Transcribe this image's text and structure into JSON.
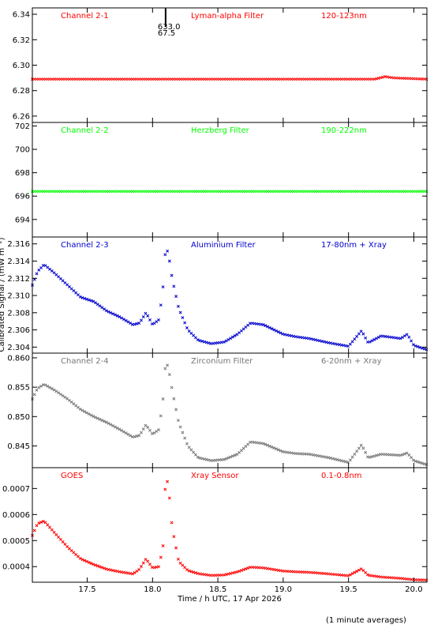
{
  "figure": {
    "xlabel": "Time / h UTC, 17 Apr 2026",
    "ylabel": "Calibrated Signal / (mW m⁻²)",
    "footnote": "(1 minute averages)",
    "marker": "x (small crosses)",
    "annotation": {
      "text1": "633.0",
      "text2": "67.5",
      "x": 18.1
    }
  },
  "chart_data": [
    {
      "type": "scatter",
      "channel": "Channel 2-1",
      "filter": "Lyman-alpha Filter",
      "band": "120-123nm",
      "color": "#ff0000",
      "xlim": [
        17.08,
        20.1
      ],
      "ylim": [
        6.255,
        6.345
      ],
      "xticks": [
        17.5,
        18.0,
        18.5,
        19.0,
        19.5,
        20.0
      ],
      "yticks": [
        6.26,
        6.28,
        6.3,
        6.32,
        6.34
      ],
      "ytick_labels": [
        "6.26",
        "6.28",
        "6.30",
        "6.32",
        "6.34"
      ],
      "x": [
        17.08,
        17.5,
        18.0,
        18.5,
        19.0,
        19.5,
        19.7,
        19.78,
        19.85,
        20.1
      ],
      "y": [
        6.289,
        6.289,
        6.289,
        6.289,
        6.289,
        6.289,
        6.289,
        6.291,
        6.29,
        6.289
      ]
    },
    {
      "type": "scatter",
      "channel": "Channel 2-2",
      "filter": "Herzberg Filter",
      "band": "190-222nm",
      "color": "#00ff00",
      "xlim": [
        17.08,
        20.1
      ],
      "ylim": [
        692.5,
        702.3
      ],
      "xticks": [
        17.5,
        18.0,
        18.5,
        19.0,
        19.5,
        20.0
      ],
      "yticks": [
        694,
        696,
        698,
        700,
        702
      ],
      "ytick_labels": [
        "694",
        "696",
        "698",
        "700",
        "702"
      ],
      "x": [
        17.08,
        18.0,
        19.0,
        20.1
      ],
      "y": [
        696.4,
        696.4,
        696.4,
        696.4
      ]
    },
    {
      "type": "scatter",
      "channel": "Channel 2-3",
      "filter": "Aluminium Filter",
      "band": "17-80nm + Xray",
      "color": "#0000cc",
      "xlim": [
        17.08,
        20.1
      ],
      "ylim": [
        2.3033,
        2.3168
      ],
      "xticks": [
        17.5,
        18.0,
        18.5,
        19.0,
        19.5,
        20.0
      ],
      "yticks": [
        2.304,
        2.306,
        2.308,
        2.31,
        2.312,
        2.314,
        2.316
      ],
      "ytick_labels": [
        "2.304",
        "2.306",
        "2.308",
        "2.310",
        "2.312",
        "2.314",
        "2.316"
      ],
      "x": [
        17.08,
        17.12,
        17.17,
        17.25,
        17.35,
        17.45,
        17.55,
        17.65,
        17.75,
        17.85,
        17.9,
        17.95,
        18.0,
        18.05,
        18.08,
        18.1,
        18.12,
        18.15,
        18.2,
        18.27,
        18.35,
        18.45,
        18.55,
        18.65,
        18.75,
        18.85,
        19.0,
        19.1,
        19.2,
        19.35,
        19.5,
        19.6,
        19.65,
        19.75,
        19.9,
        19.95,
        20.0,
        20.1
      ],
      "y": [
        2.3112,
        2.3128,
        2.3136,
        2.3126,
        2.3112,
        2.3098,
        2.3093,
        2.3082,
        2.3075,
        2.3066,
        2.3068,
        2.308,
        2.3066,
        2.3072,
        2.311,
        2.3155,
        2.315,
        2.312,
        2.3085,
        2.306,
        2.3048,
        2.3044,
        2.3046,
        2.3055,
        2.3068,
        2.3066,
        2.3055,
        2.3052,
        2.305,
        2.3045,
        2.3041,
        2.3059,
        2.3045,
        2.3053,
        2.305,
        2.3055,
        2.3042,
        2.3037
      ]
    },
    {
      "type": "scatter",
      "channel": "Channel 2-4",
      "filter": "Zirconium Filter",
      "band": "6-20nm + Xray",
      "color": "#777777",
      "xlim": [
        17.08,
        20.1
      ],
      "ylim": [
        0.8413,
        0.8608
      ],
      "xticks": [
        17.5,
        18.0,
        18.5,
        19.0,
        19.5,
        20.0
      ],
      "yticks": [
        0.845,
        0.85,
        0.855,
        0.86
      ],
      "ytick_labels": [
        "0.845",
        "0.850",
        "0.855",
        "0.860"
      ],
      "x": [
        17.08,
        17.12,
        17.17,
        17.25,
        17.35,
        17.45,
        17.55,
        17.65,
        17.75,
        17.85,
        17.9,
        17.95,
        18.0,
        18.05,
        18.08,
        18.1,
        18.12,
        18.15,
        18.2,
        18.27,
        18.35,
        18.45,
        18.55,
        18.65,
        18.75,
        18.85,
        19.0,
        19.1,
        19.2,
        19.35,
        19.5,
        19.6,
        19.65,
        19.75,
        19.9,
        19.95,
        20.0,
        20.1
      ],
      "y": [
        0.853,
        0.8548,
        0.8555,
        0.8545,
        0.853,
        0.8512,
        0.85,
        0.849,
        0.8478,
        0.8465,
        0.8468,
        0.8486,
        0.847,
        0.8478,
        0.853,
        0.8592,
        0.8585,
        0.8545,
        0.849,
        0.845,
        0.843,
        0.8425,
        0.8427,
        0.8436,
        0.8457,
        0.8454,
        0.844,
        0.8437,
        0.8436,
        0.843,
        0.8422,
        0.8452,
        0.843,
        0.8436,
        0.8434,
        0.8438,
        0.8425,
        0.8418
      ]
    },
    {
      "type": "scatter",
      "channel": "GOES",
      "filter": "Xray Sensor",
      "band": "0.1-0.8nm",
      "color": "#ff0000",
      "xlim": [
        17.08,
        20.1
      ],
      "ylim": [
        0.00034,
        0.00078
      ],
      "xticks": [
        17.5,
        18.0,
        18.5,
        19.0,
        19.5,
        20.0
      ],
      "yticks": [
        0.0004,
        0.0005,
        0.0006,
        0.0007
      ],
      "ytick_labels": [
        "0.0004",
        "0.0005",
        "0.0006",
        "0.0007"
      ],
      "x": [
        17.08,
        17.12,
        17.17,
        17.25,
        17.35,
        17.45,
        17.55,
        17.65,
        17.75,
        17.85,
        17.9,
        17.95,
        18.0,
        18.05,
        18.08,
        18.1,
        18.12,
        18.15,
        18.2,
        18.27,
        18.35,
        18.45,
        18.55,
        18.65,
        18.75,
        18.85,
        19.0,
        19.1,
        19.2,
        19.35,
        19.5,
        19.6,
        19.65,
        19.75,
        19.9,
        19.95,
        20.0,
        20.1
      ],
      "y": [
        0.00052,
        0.000565,
        0.000575,
        0.00053,
        0.000475,
        0.00043,
        0.000408,
        0.00039,
        0.00038,
        0.000372,
        0.00039,
        0.00043,
        0.000395,
        0.0004,
        0.00048,
        0.00074,
        0.00072,
        0.00055,
        0.00042,
        0.000385,
        0.000373,
        0.000366,
        0.000368,
        0.00038,
        0.000398,
        0.000395,
        0.000383,
        0.00038,
        0.000378,
        0.000372,
        0.000365,
        0.000392,
        0.000367,
        0.00036,
        0.000355,
        0.000352,
        0.00035,
        0.000348
      ]
    }
  ]
}
